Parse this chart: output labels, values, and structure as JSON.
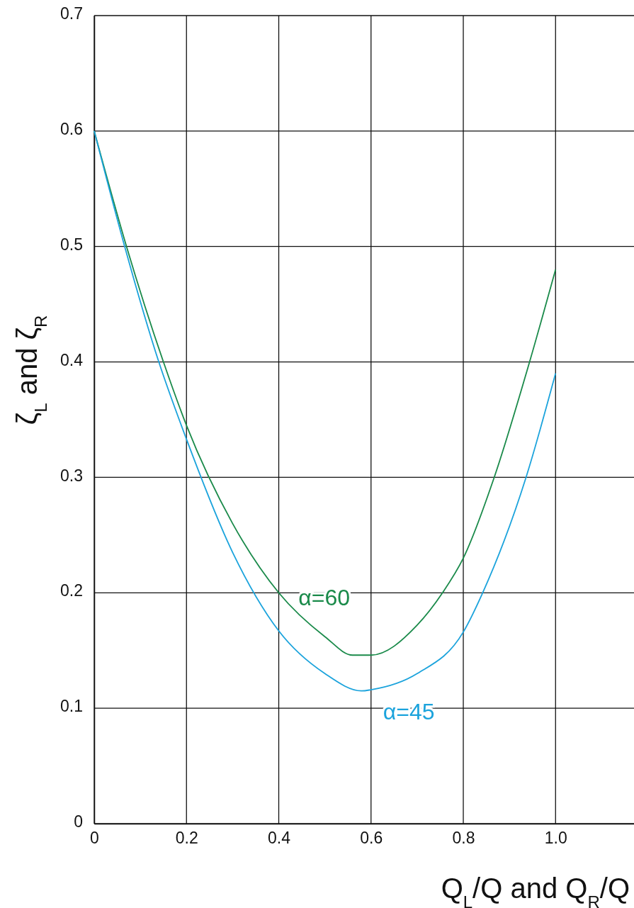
{
  "chart_data": {
    "type": "line",
    "xlabel": "Q$_{L}$/Q and Q$_{R}$/Q",
    "ylabel": "ζ$_{L}$ and ζ$_{R}$",
    "xlim": [
      0,
      1.17
    ],
    "xticks": [
      0,
      0.2,
      0.4,
      0.6,
      {
        "value": 1,
        "label": "1.0"
      },
      0.8
    ],
    "ylim": [
      0,
      0.7
    ],
    "yticks": [
      0,
      0.1,
      0.2,
      0.3,
      0.4,
      0.5,
      0.6,
      0.7
    ],
    "grid": true,
    "legend": false,
    "marker": "none",
    "line_style": "solid",
    "series": [
      {
        "name": "α=60",
        "color": "#1a8a4a",
        "x": [
          0,
          0.07,
          0.15,
          0.2,
          0.3,
          0.4,
          0.5,
          0.56,
          0.6,
          0.7,
          0.755,
          0.8,
          0.867,
          0.94,
          1.0
        ],
        "values": [
          0.6,
          0.5,
          0.4,
          0.345,
          0.26,
          0.2,
          0.162,
          0.146,
          0.146,
          0.172,
          0.2,
          0.23,
          0.3,
          0.395,
          0.48
        ]
      },
      {
        "name": "α=45",
        "color": "#1ba3dc",
        "x": [
          0,
          0.066,
          0.14,
          0.2,
          0.3,
          0.4,
          0.5,
          0.58,
          0.6,
          0.7,
          0.8,
          0.842,
          0.936,
          1.0
        ],
        "values": [
          0.6,
          0.5,
          0.4,
          0.333,
          0.235,
          0.167,
          0.13,
          0.115,
          0.116,
          0.13,
          0.166,
          0.2,
          0.3,
          0.39
        ]
      }
    ]
  }
}
